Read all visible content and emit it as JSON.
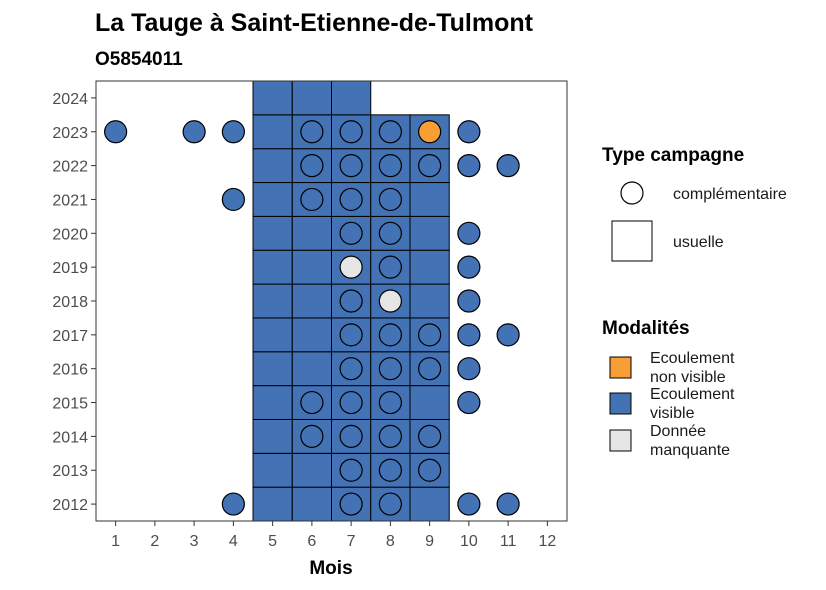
{
  "chart_data": {
    "type": "heatmap",
    "title": "La Tauge à Saint-Etienne-de-Tulmont",
    "subtitle": "O5854011",
    "xlabel": "Mois",
    "ylabel": "",
    "x_ticks": [
      1,
      2,
      3,
      4,
      5,
      6,
      7,
      8,
      9,
      10,
      11,
      12
    ],
    "y_ticks": [
      2012,
      2013,
      2014,
      2015,
      2016,
      2017,
      2018,
      2019,
      2020,
      2021,
      2022,
      2023,
      2024
    ],
    "xlim": [
      0.5,
      12.5
    ],
    "ylim": [
      2011.5,
      2024.5
    ],
    "grid": false,
    "colors": {
      "Ecoulement non visible": "#f79e35",
      "Ecoulement visible": "#4372b5",
      "Donnée manquante": "#e6e6e6"
    },
    "legend": {
      "position": "right",
      "shape_title": "Type campagne",
      "shape_entries": [
        {
          "label": "complémentaire",
          "shape": "circle"
        },
        {
          "label": "usuelle",
          "shape": "square"
        }
      ],
      "color_title": "Modalités",
      "color_entries": [
        {
          "label_lines": [
            "Ecoulement",
            "non visible"
          ],
          "key": "Ecoulement non visible"
        },
        {
          "label_lines": [
            "Ecoulement",
            "visible"
          ],
          "key": "Ecoulement visible"
        },
        {
          "label_lines": [
            "Donnée",
            "manquante"
          ],
          "key": "Donnée manquante"
        }
      ]
    },
    "usuelle": [
      {
        "month": 5,
        "year": 2012,
        "value": "Ecoulement visible"
      },
      {
        "month": 6,
        "year": 2012,
        "value": "Ecoulement visible"
      },
      {
        "month": 7,
        "year": 2012,
        "value": "Ecoulement visible"
      },
      {
        "month": 8,
        "year": 2012,
        "value": "Ecoulement visible"
      },
      {
        "month": 9,
        "year": 2012,
        "value": "Ecoulement visible"
      },
      {
        "month": 5,
        "year": 2013,
        "value": "Ecoulement visible"
      },
      {
        "month": 6,
        "year": 2013,
        "value": "Ecoulement visible"
      },
      {
        "month": 7,
        "year": 2013,
        "value": "Ecoulement visible"
      },
      {
        "month": 8,
        "year": 2013,
        "value": "Ecoulement visible"
      },
      {
        "month": 9,
        "year": 2013,
        "value": "Ecoulement visible"
      },
      {
        "month": 5,
        "year": 2014,
        "value": "Ecoulement visible"
      },
      {
        "month": 6,
        "year": 2014,
        "value": "Ecoulement visible"
      },
      {
        "month": 7,
        "year": 2014,
        "value": "Ecoulement visible"
      },
      {
        "month": 8,
        "year": 2014,
        "value": "Ecoulement visible"
      },
      {
        "month": 9,
        "year": 2014,
        "value": "Ecoulement visible"
      },
      {
        "month": 5,
        "year": 2015,
        "value": "Ecoulement visible"
      },
      {
        "month": 6,
        "year": 2015,
        "value": "Ecoulement visible"
      },
      {
        "month": 7,
        "year": 2015,
        "value": "Ecoulement visible"
      },
      {
        "month": 8,
        "year": 2015,
        "value": "Ecoulement visible"
      },
      {
        "month": 9,
        "year": 2015,
        "value": "Ecoulement visible"
      },
      {
        "month": 5,
        "year": 2016,
        "value": "Ecoulement visible"
      },
      {
        "month": 6,
        "year": 2016,
        "value": "Ecoulement visible"
      },
      {
        "month": 7,
        "year": 2016,
        "value": "Ecoulement visible"
      },
      {
        "month": 8,
        "year": 2016,
        "value": "Ecoulement visible"
      },
      {
        "month": 9,
        "year": 2016,
        "value": "Ecoulement visible"
      },
      {
        "month": 5,
        "year": 2017,
        "value": "Ecoulement visible"
      },
      {
        "month": 6,
        "year": 2017,
        "value": "Ecoulement visible"
      },
      {
        "month": 7,
        "year": 2017,
        "value": "Ecoulement visible"
      },
      {
        "month": 8,
        "year": 2017,
        "value": "Ecoulement visible"
      },
      {
        "month": 9,
        "year": 2017,
        "value": "Ecoulement visible"
      },
      {
        "month": 5,
        "year": 2018,
        "value": "Ecoulement visible"
      },
      {
        "month": 6,
        "year": 2018,
        "value": "Ecoulement visible"
      },
      {
        "month": 7,
        "year": 2018,
        "value": "Ecoulement visible"
      },
      {
        "month": 8,
        "year": 2018,
        "value": "Ecoulement visible"
      },
      {
        "month": 9,
        "year": 2018,
        "value": "Ecoulement visible"
      },
      {
        "month": 5,
        "year": 2019,
        "value": "Ecoulement visible"
      },
      {
        "month": 6,
        "year": 2019,
        "value": "Ecoulement visible"
      },
      {
        "month": 7,
        "year": 2019,
        "value": "Ecoulement visible"
      },
      {
        "month": 8,
        "year": 2019,
        "value": "Ecoulement visible"
      },
      {
        "month": 9,
        "year": 2019,
        "value": "Ecoulement visible"
      },
      {
        "month": 5,
        "year": 2020,
        "value": "Ecoulement visible"
      },
      {
        "month": 6,
        "year": 2020,
        "value": "Ecoulement visible"
      },
      {
        "month": 7,
        "year": 2020,
        "value": "Ecoulement visible"
      },
      {
        "month": 8,
        "year": 2020,
        "value": "Ecoulement visible"
      },
      {
        "month": 9,
        "year": 2020,
        "value": "Ecoulement visible"
      },
      {
        "month": 5,
        "year": 2021,
        "value": "Ecoulement visible"
      },
      {
        "month": 6,
        "year": 2021,
        "value": "Ecoulement visible"
      },
      {
        "month": 7,
        "year": 2021,
        "value": "Ecoulement visible"
      },
      {
        "month": 8,
        "year": 2021,
        "value": "Ecoulement visible"
      },
      {
        "month": 9,
        "year": 2021,
        "value": "Ecoulement visible"
      },
      {
        "month": 5,
        "year": 2022,
        "value": "Ecoulement visible"
      },
      {
        "month": 6,
        "year": 2022,
        "value": "Ecoulement visible"
      },
      {
        "month": 7,
        "year": 2022,
        "value": "Ecoulement visible"
      },
      {
        "month": 8,
        "year": 2022,
        "value": "Ecoulement visible"
      },
      {
        "month": 9,
        "year": 2022,
        "value": "Ecoulement visible"
      },
      {
        "month": 5,
        "year": 2023,
        "value": "Ecoulement visible"
      },
      {
        "month": 6,
        "year": 2023,
        "value": "Ecoulement visible"
      },
      {
        "month": 7,
        "year": 2023,
        "value": "Ecoulement visible"
      },
      {
        "month": 8,
        "year": 2023,
        "value": "Ecoulement visible"
      },
      {
        "month": 9,
        "year": 2023,
        "value": "Ecoulement visible"
      },
      {
        "month": 5,
        "year": 2024,
        "value": "Ecoulement visible"
      },
      {
        "month": 6,
        "year": 2024,
        "value": "Ecoulement visible"
      },
      {
        "month": 7,
        "year": 2024,
        "value": "Ecoulement visible"
      }
    ],
    "complementaire": [
      {
        "month": 4,
        "year": 2012,
        "value": "Ecoulement visible"
      },
      {
        "month": 7,
        "year": 2012,
        "value": "Ecoulement visible"
      },
      {
        "month": 8,
        "year": 2012,
        "value": "Ecoulement visible"
      },
      {
        "month": 10,
        "year": 2012,
        "value": "Ecoulement visible"
      },
      {
        "month": 11,
        "year": 2012,
        "value": "Ecoulement visible"
      },
      {
        "month": 7,
        "year": 2013,
        "value": "Ecoulement visible"
      },
      {
        "month": 8,
        "year": 2013,
        "value": "Ecoulement visible"
      },
      {
        "month": 9,
        "year": 2013,
        "value": "Ecoulement visible"
      },
      {
        "month": 6,
        "year": 2014,
        "value": "Ecoulement visible"
      },
      {
        "month": 7,
        "year": 2014,
        "value": "Ecoulement visible"
      },
      {
        "month": 8,
        "year": 2014,
        "value": "Ecoulement visible"
      },
      {
        "month": 9,
        "year": 2014,
        "value": "Ecoulement visible"
      },
      {
        "month": 6,
        "year": 2015,
        "value": "Ecoulement visible"
      },
      {
        "month": 7,
        "year": 2015,
        "value": "Ecoulement visible"
      },
      {
        "month": 8,
        "year": 2015,
        "value": "Ecoulement visible"
      },
      {
        "month": 10,
        "year": 2015,
        "value": "Ecoulement visible"
      },
      {
        "month": 7,
        "year": 2016,
        "value": "Ecoulement visible"
      },
      {
        "month": 8,
        "year": 2016,
        "value": "Ecoulement visible"
      },
      {
        "month": 9,
        "year": 2016,
        "value": "Ecoulement visible"
      },
      {
        "month": 10,
        "year": 2016,
        "value": "Ecoulement visible"
      },
      {
        "month": 7,
        "year": 2017,
        "value": "Ecoulement visible"
      },
      {
        "month": 8,
        "year": 2017,
        "value": "Ecoulement visible"
      },
      {
        "month": 9,
        "year": 2017,
        "value": "Ecoulement visible"
      },
      {
        "month": 10,
        "year": 2017,
        "value": "Ecoulement visible"
      },
      {
        "month": 11,
        "year": 2017,
        "value": "Ecoulement visible"
      },
      {
        "month": 7,
        "year": 2018,
        "value": "Ecoulement visible"
      },
      {
        "month": 8,
        "year": 2018,
        "value": "Donnée manquante"
      },
      {
        "month": 10,
        "year": 2018,
        "value": "Ecoulement visible"
      },
      {
        "month": 7,
        "year": 2019,
        "value": "Donnée manquante"
      },
      {
        "month": 8,
        "year": 2019,
        "value": "Ecoulement visible"
      },
      {
        "month": 10,
        "year": 2019,
        "value": "Ecoulement visible"
      },
      {
        "month": 7,
        "year": 2020,
        "value": "Ecoulement visible"
      },
      {
        "month": 8,
        "year": 2020,
        "value": "Ecoulement visible"
      },
      {
        "month": 10,
        "year": 2020,
        "value": "Ecoulement visible"
      },
      {
        "month": 4,
        "year": 2021,
        "value": "Ecoulement visible"
      },
      {
        "month": 6,
        "year": 2021,
        "value": "Ecoulement visible"
      },
      {
        "month": 7,
        "year": 2021,
        "value": "Ecoulement visible"
      },
      {
        "month": 8,
        "year": 2021,
        "value": "Ecoulement visible"
      },
      {
        "month": 6,
        "year": 2022,
        "value": "Ecoulement visible"
      },
      {
        "month": 7,
        "year": 2022,
        "value": "Ecoulement visible"
      },
      {
        "month": 8,
        "year": 2022,
        "value": "Ecoulement visible"
      },
      {
        "month": 9,
        "year": 2022,
        "value": "Ecoulement visible"
      },
      {
        "month": 10,
        "year": 2022,
        "value": "Ecoulement visible"
      },
      {
        "month": 11,
        "year": 2022,
        "value": "Ecoulement visible"
      },
      {
        "month": 1,
        "year": 2023,
        "value": "Ecoulement visible"
      },
      {
        "month": 3,
        "year": 2023,
        "value": "Ecoulement visible"
      },
      {
        "month": 4,
        "year": 2023,
        "value": "Ecoulement visible"
      },
      {
        "month": 6,
        "year": 2023,
        "value": "Ecoulement visible"
      },
      {
        "month": 7,
        "year": 2023,
        "value": "Ecoulement visible"
      },
      {
        "month": 8,
        "year": 2023,
        "value": "Ecoulement visible"
      },
      {
        "month": 9,
        "year": 2023,
        "value": "Ecoulement non visible"
      },
      {
        "month": 10,
        "year": 2023,
        "value": "Ecoulement visible"
      }
    ]
  }
}
